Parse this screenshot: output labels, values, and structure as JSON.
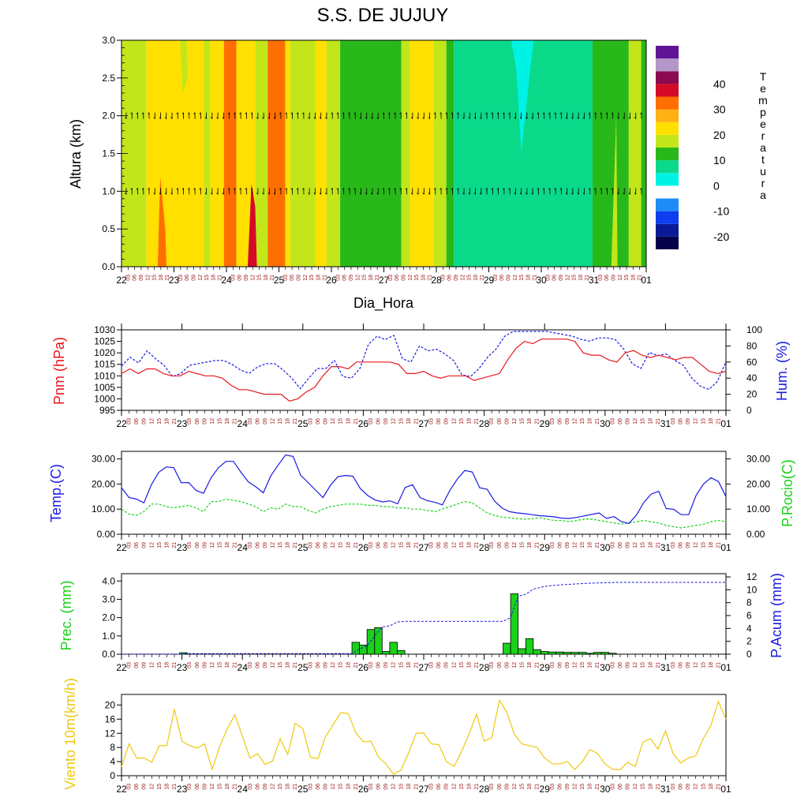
{
  "title": "S.S. DE JUJUY",
  "colors": {
    "red": "#e8171d",
    "blue": "#1a1ae6",
    "green": "#19d219",
    "yellow": "#f0c810",
    "darkred": "#a01818"
  },
  "x_axis": {
    "days": [
      "22",
      "23",
      "24",
      "25",
      "26",
      "27",
      "28",
      "29",
      "30",
      "31",
      "01"
    ],
    "hours": [
      "03",
      "06",
      "09",
      "12",
      "15",
      "18",
      "21"
    ],
    "label": "Dia_Hora"
  },
  "chart_data": [
    {
      "type": "heatmap",
      "title": "S.S. DE JUJUY",
      "xlabel": "Dia_Hora",
      "ylabel": "Altura (km)",
      "ylim": [
        0,
        3
      ],
      "yticks": [
        "0.0",
        "0.5",
        "1.0",
        "1.5",
        "2.0",
        "2.5",
        "3.0"
      ],
      "legend_title": "Temperatura",
      "colorbar_levels": [
        "-20",
        "-10",
        "0",
        "10",
        "20",
        "30",
        "40"
      ],
      "colorbar_colors": [
        "#04004a",
        "#0a1a96",
        "#0f3df0",
        "#1e8cf5",
        "#ffffff",
        "#00f2e4",
        "#0ad98a",
        "#28b81a",
        "#c2e61a",
        "#ffe000",
        "#ffb014",
        "#ff6e00",
        "#d40a28",
        "#8b0a50",
        "#b497c8",
        "#5f1496"
      ],
      "columns": [
        {
          "from": 0,
          "to": 1.0,
          "fill": "#c2e61a"
        },
        {
          "from": 1.0,
          "to": 3.0,
          "fill": "#ffe000"
        },
        {
          "from": 3.0,
          "to": 3.3,
          "fill": "#ffe000"
        },
        {
          "from": 3.3,
          "to": 3.55,
          "fill": "#c2e61a"
        },
        {
          "from": 3.55,
          "to": 4.1,
          "fill": "#ffe000"
        },
        {
          "from": 4.1,
          "to": 4.6,
          "fill": "#ff6e00"
        },
        {
          "from": 4.6,
          "to": 5.35,
          "fill": "#ffe000"
        },
        {
          "from": 5.35,
          "to": 5.85,
          "fill": "#c2e61a"
        },
        {
          "from": 5.85,
          "to": 6.55,
          "fill": "#ff6e00"
        },
        {
          "from": 6.55,
          "to": 6.75,
          "fill": "#ffe000"
        },
        {
          "from": 6.75,
          "to": 7.75,
          "fill": "#c2e61a"
        },
        {
          "from": 7.75,
          "to": 8.2,
          "fill": "#ffe000"
        },
        {
          "from": 8.2,
          "to": 8.75,
          "fill": "#c2e61a"
        },
        {
          "from": 8.75,
          "to": 11.2,
          "fill": "#28b81a"
        },
        {
          "from": 11.2,
          "to": 11.55,
          "fill": "#c2e61a"
        },
        {
          "from": 11.55,
          "to": 12.5,
          "fill": "#ffe000"
        },
        {
          "from": 12.5,
          "to": 13.0,
          "fill": "#c2e61a"
        },
        {
          "from": 13.0,
          "to": 13.3,
          "fill": "#28b81a"
        },
        {
          "from": 13.3,
          "to": 18.85,
          "fill": "#0ad98a"
        },
        {
          "from": 18.85,
          "to": 20.3,
          "fill": "#28b81a"
        },
        {
          "from": 20.3,
          "to": 20.8,
          "fill": "#c2e61a"
        },
        {
          "from": 20.8,
          "to": 21.0,
          "fill": "#28b81a"
        }
      ],
      "patches": [
        {
          "fill": "#ff6e00",
          "x": [
            1.45,
            1.55,
            1.75,
            1.8,
            1.6
          ],
          "y": [
            0,
            1.2,
            0.5,
            0,
            0
          ]
        },
        {
          "fill": "#d40a28",
          "x": [
            5.05,
            5.2,
            5.35,
            5.42,
            5.1
          ],
          "y": [
            0,
            1.1,
            0.8,
            0,
            0
          ]
        },
        {
          "fill": "#c2e61a",
          "x": [
            2.35,
            2.45,
            2.65,
            2.6
          ],
          "y": [
            3.0,
            2.3,
            2.5,
            3.0
          ]
        },
        {
          "fill": "#c2e61a",
          "x": [
            7.2,
            7.75,
            7.75,
            7.4
          ],
          "y": [
            3.0,
            3.0,
            0.0,
            0.0
          ]
        },
        {
          "fill": "#28b81a",
          "x": [
            9.5,
            9.75,
            9.65
          ],
          "y": [
            3.0,
            3.0,
            2.1
          ]
        },
        {
          "fill": "#00f2e4",
          "x": [
            15.6,
            16.5,
            16.35,
            16.0,
            15.8
          ],
          "y": [
            3.0,
            3.0,
            2.6,
            1.5,
            2.6
          ]
        },
        {
          "fill": "#c2e61a",
          "x": [
            19.6,
            19.8,
            19.85,
            19.7
          ],
          "y": [
            0.0,
            2.0,
            0.0,
            0.0
          ]
        }
      ],
      "wind_levels": [
        1.0,
        2.0
      ]
    },
    {
      "type": "line",
      "ylabel": "Pnm (hPa)",
      "ylim": [
        995,
        1030
      ],
      "yticks": [
        "995",
        "1000",
        "1005",
        "1010",
        "1015",
        "1020",
        "1025",
        "1030"
      ],
      "y2label": "Hum. (%)",
      "y2lim": [
        0,
        100
      ],
      "y2ticks": [
        "0",
        "20",
        "40",
        "60",
        "80",
        "100"
      ],
      "series": [
        {
          "values": [
            1011,
            1013,
            1011,
            1013,
            1013,
            1011,
            1010,
            1010,
            1012,
            1011,
            1010,
            1010,
            1009,
            1006,
            1004,
            1004,
            1003,
            1002,
            1002,
            1002,
            999,
            1000,
            1003,
            1005,
            1010,
            1014,
            1014,
            1013,
            1016,
            1016,
            1016,
            1016,
            1016,
            1015,
            1011,
            1011,
            1012,
            1010,
            1009,
            1010,
            1010,
            1010,
            1008,
            1009,
            1010,
            1011,
            1017,
            1022,
            1025,
            1024,
            1026,
            1026,
            1026,
            1026,
            1025,
            1020,
            1019,
            1019,
            1017,
            1016,
            1020,
            1021,
            1019,
            1018,
            1019,
            1018,
            1017,
            1018,
            1018,
            1015,
            1012,
            1011,
            1012
          ]
        },
        {
          "values": [
            55,
            66,
            59,
            74,
            64,
            56,
            42,
            46,
            56,
            58,
            60,
            62,
            62,
            57,
            50,
            46,
            54,
            58,
            58,
            50,
            40,
            27,
            40,
            52,
            52,
            62,
            42,
            40,
            52,
            82,
            92,
            88,
            93,
            64,
            60,
            80,
            74,
            76,
            70,
            62,
            44,
            42,
            52,
            66,
            76,
            92,
            98,
            98,
            98,
            98,
            98,
            96,
            94,
            92,
            88,
            86,
            90,
            90,
            88,
            76,
            58,
            52,
            72,
            68,
            70,
            62,
            56,
            40,
            30,
            26,
            36,
            60
          ]
        }
      ]
    },
    {
      "type": "line",
      "ylabel": "Temp.(C)",
      "ylim": [
        0,
        33
      ],
      "yticks": [
        "0.00",
        "10.00",
        "20.00",
        "30.00"
      ],
      "y2label": "P.Rocio(C)",
      "y2ticks": [
        "0.00",
        "10.00",
        "20.00",
        "30.00"
      ],
      "series": [
        {
          "values": [
            18.5,
            14.6,
            14,
            12.5,
            19.7,
            24.7,
            26.8,
            26.5,
            20.5,
            20.6,
            17.4,
            16.3,
            22.5,
            26.5,
            29,
            29,
            24.7,
            20.8,
            18.9,
            16.5,
            23.2,
            27.6,
            31.6,
            31,
            23.5,
            20.6,
            17.6,
            14.6,
            19.5,
            22.9,
            23.4,
            23.1,
            18.2,
            15.4,
            13.6,
            12.9,
            13.3,
            12.1,
            18.6,
            19.7,
            14.6,
            13.4,
            12.7,
            11.7,
            17.4,
            22,
            25.4,
            24.8,
            18.5,
            17.9,
            13.2,
            10.4,
            9,
            8.5,
            8.2,
            7.8,
            7.4,
            7.2,
            6.9,
            6.4,
            6.3,
            6.7,
            7.3,
            7.9,
            8.5,
            6.3,
            7,
            5,
            4.3,
            7.6,
            12.7,
            16,
            17.1,
            10.2,
            9.9,
            7.8,
            7.8,
            15.5,
            20,
            22.5,
            21,
            15
          ]
        },
        {
          "values": [
            10,
            8,
            7.5,
            9,
            12,
            12,
            11,
            10.5,
            11,
            11.5,
            10.5,
            9,
            13,
            13,
            14,
            13.5,
            13,
            12,
            11,
            9,
            10.5,
            10,
            12,
            11,
            11,
            9.5,
            8.5,
            10,
            11,
            11.5,
            12,
            12,
            12,
            11.5,
            11.5,
            11,
            11,
            10.5,
            10.5,
            10,
            10,
            9.5,
            9,
            10,
            11,
            12,
            13,
            12.5,
            10.5,
            8.5,
            7.5,
            6.8,
            6.5,
            6.2,
            6,
            6.2,
            6.5,
            6,
            5.5,
            5.5,
            5,
            5.5,
            6,
            6,
            5.5,
            5,
            4.5,
            4,
            4.5,
            5,
            5.5,
            5,
            4.5,
            3.5,
            3,
            2.5,
            3,
            3.5,
            4,
            5,
            5.5,
            5
          ]
        }
      ]
    },
    {
      "type": "bar",
      "ylabel": "Prec. (mm)",
      "ylim": [
        0,
        4.4
      ],
      "yticks": [
        "0.0",
        "1.0",
        "2.0",
        "3.0",
        "4.0"
      ],
      "y2label": "P.Acum (mm)",
      "y2lim": [
        0,
        12.5
      ],
      "y2ticks": [
        "0",
        "2",
        "4",
        "6",
        "8",
        "10",
        "12"
      ],
      "bars": [
        {
          "x": 8.2,
          "v": 0.08
        },
        {
          "x": 31,
          "v": 0.65
        },
        {
          "x": 32,
          "v": 0.5
        },
        {
          "x": 33,
          "v": 1.35
        },
        {
          "x": 34,
          "v": 1.45
        },
        {
          "x": 35,
          "v": 0.15
        },
        {
          "x": 36,
          "v": 0.65
        },
        {
          "x": 37,
          "v": 0.2
        },
        {
          "x": 51,
          "v": 0.6
        },
        {
          "x": 52,
          "v": 3.3
        },
        {
          "x": 53,
          "v": 0.3
        },
        {
          "x": 54,
          "v": 0.85
        },
        {
          "x": 55,
          "v": 0.25
        },
        {
          "x": 56,
          "v": 0.15
        },
        {
          "x": 57,
          "v": 0.12
        },
        {
          "x": 58,
          "v": 0.12
        },
        {
          "x": 59,
          "v": 0.1
        },
        {
          "x": 60,
          "v": 0.1
        },
        {
          "x": 61,
          "v": 0.1
        },
        {
          "x": 62,
          "v": 0.05
        },
        {
          "x": 63,
          "v": 0.1
        },
        {
          "x": 64,
          "v": 0.1
        },
        {
          "x": 65,
          "v": 0.05
        }
      ],
      "accum": [
        [
          0,
          0
        ],
        [
          8,
          0
        ],
        [
          8.5,
          0.1
        ],
        [
          30.5,
          0.1
        ],
        [
          31.5,
          0.8
        ],
        [
          32.5,
          1.3
        ],
        [
          33.5,
          2.8
        ],
        [
          34.5,
          4.2
        ],
        [
          35.5,
          4.4
        ],
        [
          36.5,
          5
        ],
        [
          37.5,
          5.1
        ],
        [
          50.5,
          5.1
        ],
        [
          51.5,
          5.7
        ],
        [
          52.5,
          9.0
        ],
        [
          53.5,
          9.3
        ],
        [
          54.5,
          10.1
        ],
        [
          55.5,
          10.4
        ],
        [
          56.5,
          10.6
        ],
        [
          58.5,
          10.8
        ],
        [
          61.5,
          11.0
        ],
        [
          65.5,
          11.15
        ],
        [
          80,
          11.15
        ]
      ]
    },
    {
      "type": "line",
      "ylabel": "Viento 10m(km/h)",
      "ylim": [
        0,
        23
      ],
      "yticks": [
        "0",
        "4",
        "8",
        "12",
        "16",
        "20"
      ],
      "series": [
        {
          "values": [
            2.5,
            9,
            5,
            5,
            3.8,
            8.5,
            8.5,
            18.8,
            9.8,
            8.5,
            7.8,
            9,
            1.8,
            8.3,
            13.3,
            17.2,
            11.2,
            5,
            6.2,
            3.2,
            4.2,
            10.5,
            6,
            14.8,
            13.3,
            5.2,
            4.8,
            11,
            14.4,
            17.8,
            17.6,
            12.2,
            9.6,
            9.8,
            5.3,
            3.3,
            0.4,
            1.6,
            6.5,
            12,
            12.1,
            9,
            8.8,
            4,
            2.6,
            6.8,
            11.8,
            17.4,
            9.8,
            10.7,
            21.3,
            18,
            11.7,
            9,
            8.5,
            8,
            5,
            3.4,
            3.3,
            4,
            1.7,
            4,
            7.4,
            6.3,
            3.3,
            1.8,
            1.7,
            3.8,
            2.6,
            9.5,
            10.5,
            7.5,
            12.7,
            6.3,
            3.6,
            5,
            5.6,
            10.5,
            14.2,
            21,
            16
          ]
        }
      ]
    }
  ]
}
